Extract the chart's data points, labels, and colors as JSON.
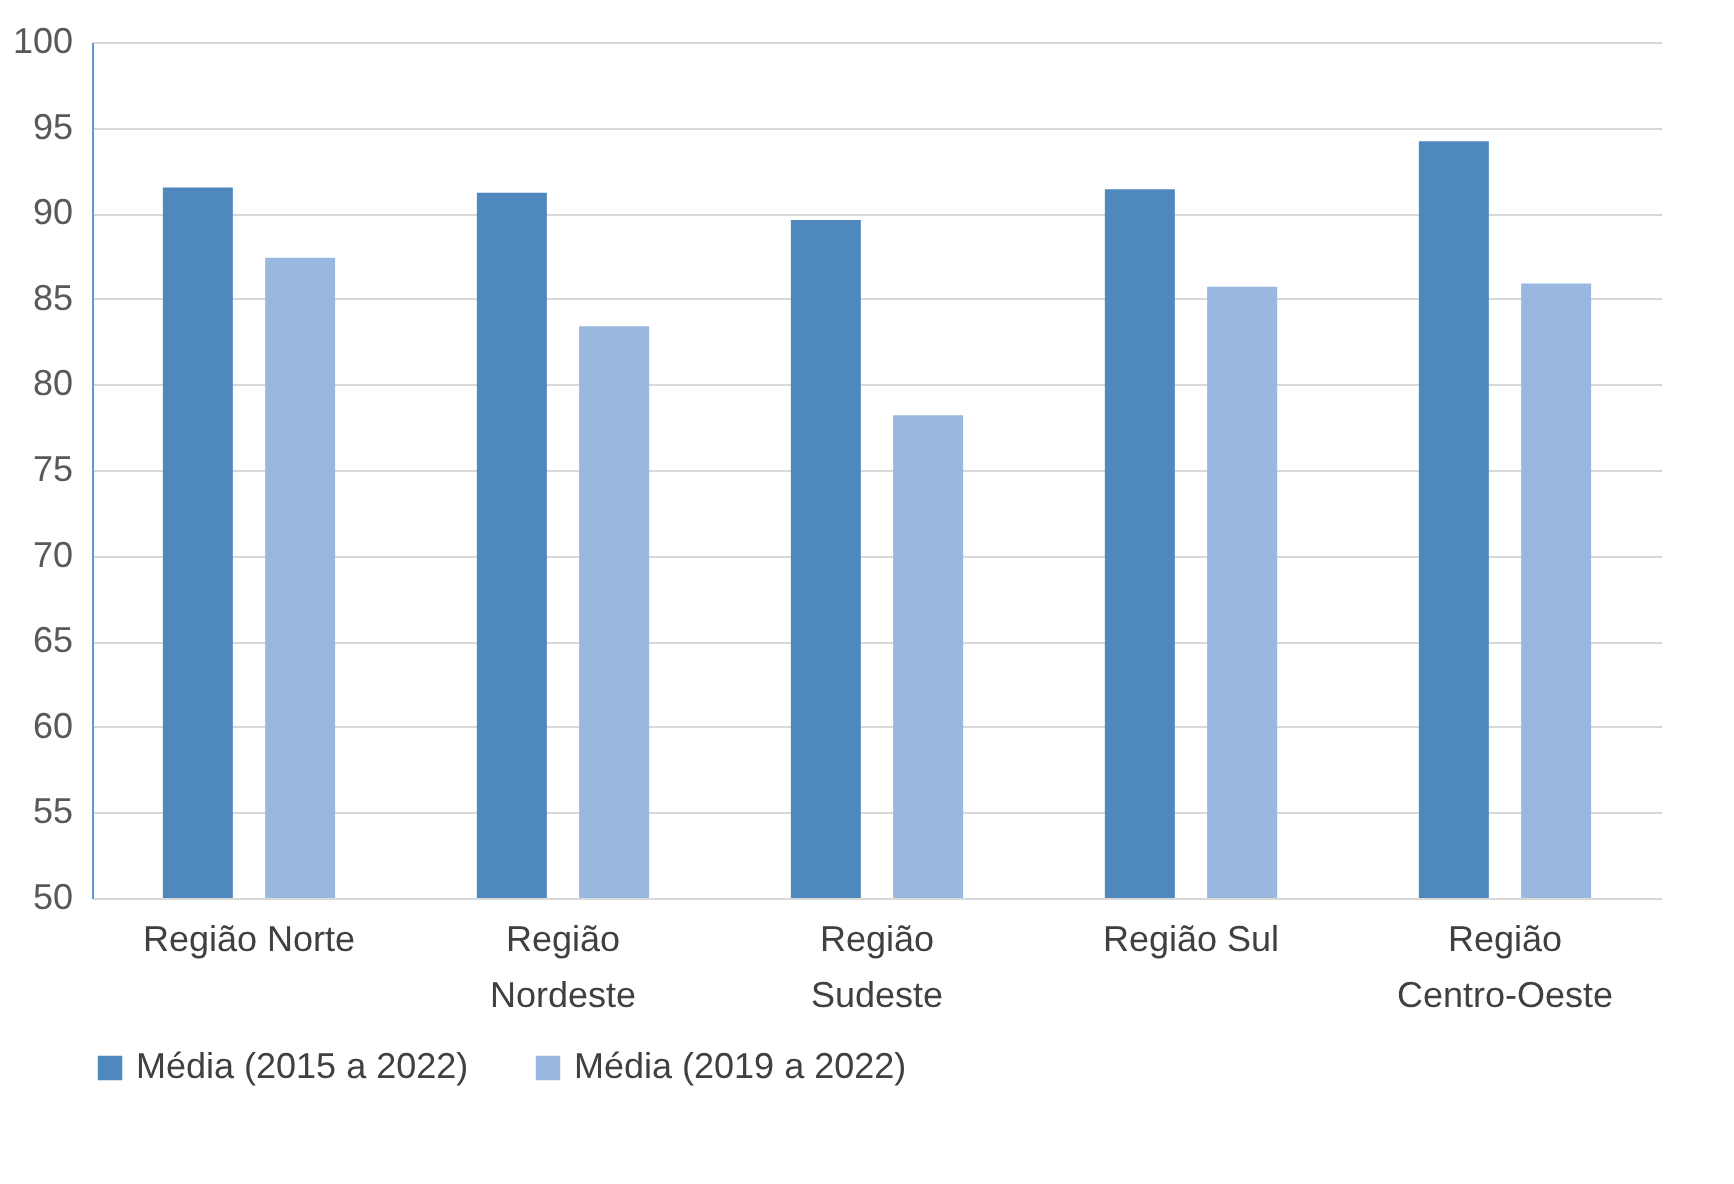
{
  "chart_data": {
    "type": "bar",
    "categories": [
      "Região Norte",
      "Região Nordeste",
      "Região Sudeste",
      "Região Sul",
      "Região Centro-Oeste"
    ],
    "series": [
      {
        "name": "Média (2015 a 2022)",
        "color": "#4f88bd",
        "values": [
          91.5,
          91.2,
          89.6,
          91.4,
          94.2
        ]
      },
      {
        "name": "Média (2019 a 2022)",
        "color": "#98b8df",
        "values": [
          87.4,
          83.4,
          78.2,
          85.7,
          85.9
        ]
      }
    ],
    "ylim": [
      50,
      100
    ],
    "yticks": [
      50,
      55,
      60,
      65,
      70,
      75,
      80,
      85,
      90,
      95,
      100
    ],
    "grid": "y",
    "legend": "bottom"
  }
}
